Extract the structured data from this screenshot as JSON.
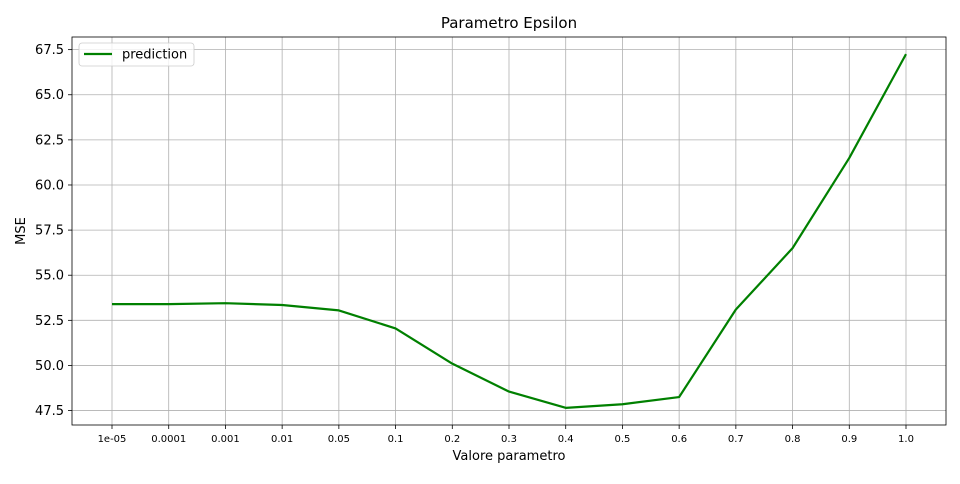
{
  "chart_data": {
    "type": "line",
    "title": "Parametro Epsilon",
    "xlabel": "Valore parametro",
    "ylabel": "MSE",
    "categories": [
      "1e-05",
      "0.0001",
      "0.001",
      "0.01",
      "0.05",
      "0.1",
      "0.2",
      "0.3",
      "0.4",
      "0.5",
      "0.6",
      "0.7",
      "0.8",
      "0.9",
      "1.0"
    ],
    "series": [
      {
        "name": "prediction",
        "color": "#008000",
        "values": [
          53.4,
          53.4,
          53.45,
          53.35,
          53.05,
          52.05,
          50.1,
          48.55,
          47.65,
          47.85,
          48.25,
          53.1,
          56.5,
          61.5,
          67.25
        ]
      }
    ],
    "yticks": [
      "47.5",
      "50.0",
      "52.5",
      "55.0",
      "57.5",
      "60.0",
      "62.5",
      "65.0",
      "67.5"
    ],
    "ylim": [
      46.7,
      68.2
    ],
    "grid": true,
    "legend_position": "top-left"
  }
}
